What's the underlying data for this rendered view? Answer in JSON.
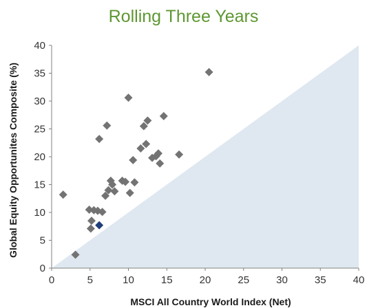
{
  "chart_data": {
    "type": "scatter",
    "title": "Rolling Three Years",
    "xlabel": "MSCI All Country World Index (Net)",
    "ylabel": "Global Equity Opportunites Composite (%)",
    "xlim": [
      0,
      40
    ],
    "ylim": [
      0,
      40
    ],
    "xticks": [
      0,
      5,
      10,
      15,
      20,
      25,
      30,
      35,
      40
    ],
    "yticks": [
      0,
      5,
      10,
      15,
      20,
      25,
      30,
      35,
      40
    ],
    "grid": false,
    "legend": "none",
    "diagonal_region": "below y = x shaded",
    "colors": {
      "title": "#5e9732",
      "points": "#737373",
      "highlight": "#1f3f7a",
      "region": "#dfe8f0"
    },
    "points": [
      {
        "x": 1.5,
        "y": 13.2
      },
      {
        "x": 3.1,
        "y": 2.4
      },
      {
        "x": 4.9,
        "y": 10.5
      },
      {
        "x": 5.1,
        "y": 7.1
      },
      {
        "x": 5.2,
        "y": 8.5
      },
      {
        "x": 5.5,
        "y": 10.4
      },
      {
        "x": 6.0,
        "y": 10.3
      },
      {
        "x": 6.2,
        "y": 23.2
      },
      {
        "x": 6.6,
        "y": 10.1
      },
      {
        "x": 7.0,
        "y": 13.0
      },
      {
        "x": 7.2,
        "y": 25.6
      },
      {
        "x": 7.4,
        "y": 14.0
      },
      {
        "x": 7.7,
        "y": 15.7
      },
      {
        "x": 7.9,
        "y": 15.0
      },
      {
        "x": 8.2,
        "y": 13.8
      },
      {
        "x": 9.2,
        "y": 15.7
      },
      {
        "x": 9.6,
        "y": 15.5
      },
      {
        "x": 10.0,
        "y": 30.6
      },
      {
        "x": 10.2,
        "y": 13.5
      },
      {
        "x": 10.6,
        "y": 19.4
      },
      {
        "x": 10.8,
        "y": 15.4
      },
      {
        "x": 11.6,
        "y": 21.5
      },
      {
        "x": 12.0,
        "y": 25.5
      },
      {
        "x": 12.3,
        "y": 22.3
      },
      {
        "x": 12.5,
        "y": 26.5
      },
      {
        "x": 13.1,
        "y": 19.8
      },
      {
        "x": 13.6,
        "y": 20.1
      },
      {
        "x": 13.9,
        "y": 20.6
      },
      {
        "x": 14.1,
        "y": 18.8
      },
      {
        "x": 14.6,
        "y": 27.3
      },
      {
        "x": 16.6,
        "y": 20.4
      },
      {
        "x": 20.5,
        "y": 35.2
      }
    ],
    "highlight_points": [
      {
        "x": 6.2,
        "y": 7.7
      }
    ]
  }
}
